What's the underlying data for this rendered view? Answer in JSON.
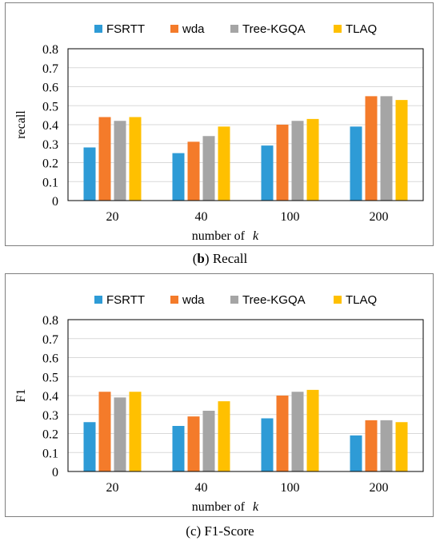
{
  "colors": {
    "FSRTT": "#2e9bd6",
    "wda": "#f47b2a",
    "Tree-KGQA": "#a5a5a5",
    "TLAQ": "#ffc000",
    "grid": "#d9d9d9",
    "axis": "#000000"
  },
  "captions": {
    "b_letter": "b",
    "b_text": "Recall",
    "c_letter": "c",
    "c_text": "F1-Score"
  },
  "chart_data": [
    {
      "type": "bar",
      "id": "recall",
      "categories": [
        "20",
        "40",
        "100",
        "200"
      ],
      "series": [
        {
          "name": "FSRTT",
          "values": [
            0.28,
            0.25,
            0.29,
            0.39
          ]
        },
        {
          "name": "wda",
          "values": [
            0.44,
            0.31,
            0.4,
            0.55
          ]
        },
        {
          "name": "Tree-KGQA",
          "values": [
            0.42,
            0.34,
            0.42,
            0.55
          ]
        },
        {
          "name": "TLAQ",
          "values": [
            0.44,
            0.39,
            0.43,
            0.53
          ]
        }
      ],
      "xlabel": "number of",
      "xlabel_var": "k",
      "ylabel": "recall",
      "ylim": [
        0,
        0.8
      ],
      "yticks": [
        "0",
        "0.1",
        "0.2",
        "0.3",
        "0.4",
        "0.5",
        "0.6",
        "0.7",
        "0.8"
      ],
      "grid": true,
      "legend": "top"
    },
    {
      "type": "bar",
      "id": "f1",
      "categories": [
        "20",
        "40",
        "100",
        "200"
      ],
      "series": [
        {
          "name": "FSRTT",
          "values": [
            0.26,
            0.24,
            0.28,
            0.19
          ]
        },
        {
          "name": "wda",
          "values": [
            0.42,
            0.29,
            0.4,
            0.27
          ]
        },
        {
          "name": "Tree-KGQA",
          "values": [
            0.39,
            0.32,
            0.42,
            0.27
          ]
        },
        {
          "name": "TLAQ",
          "values": [
            0.42,
            0.37,
            0.43,
            0.26
          ]
        }
      ],
      "xlabel": "number of",
      "xlabel_var": "k",
      "ylabel": "F1",
      "ylim": [
        0,
        0.8
      ],
      "yticks": [
        "0",
        "0.1",
        "0.2",
        "0.3",
        "0.4",
        "0.5",
        "0.6",
        "0.7",
        "0.8"
      ],
      "grid": true,
      "legend": "top"
    }
  ]
}
